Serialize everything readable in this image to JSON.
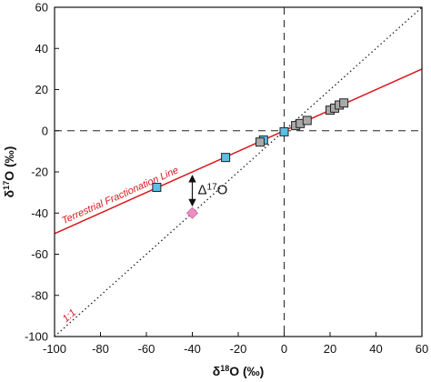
{
  "chart_data": {
    "type": "scatter",
    "xlim": [
      -100,
      60
    ],
    "ylim": [
      -100,
      60
    ],
    "xticks": [
      "-100",
      "-80",
      "-60",
      "-40",
      "-20",
      "0",
      "20",
      "40",
      "60"
    ],
    "yticks": [
      "60",
      "40",
      "20",
      "0",
      "-20",
      "-40",
      "-60",
      "-80",
      "-100"
    ],
    "xlabel_prefix": "δ",
    "xlabel_sup": "18",
    "xlabel_suffix": "O (‰)",
    "ylabel_prefix": "δ",
    "ylabel_sup": "17",
    "ylabel_suffix": "O (‰)",
    "grid": false,
    "reference_lines": {
      "terrestrial_fractionation_line": {
        "label": "Terrestrial Fractionation Line",
        "slope": 0.5,
        "intercept": 0,
        "color": "#d9161c"
      },
      "one_to_one": {
        "label": "1:1",
        "slope": 1,
        "intercept": 0,
        "color": "#222222"
      },
      "zero_lines": {
        "x": 0,
        "y": 0
      }
    },
    "series": [
      {
        "marker": "square",
        "color": "#5bbfe6",
        "points": [
          [
            -55.5,
            -27.5
          ],
          [
            -25.5,
            -13
          ],
          [
            -9,
            -4.5
          ],
          [
            0,
            -0.5
          ]
        ]
      },
      {
        "marker": "square",
        "color": "#a9a9a9",
        "points": [
          [
            -10.5,
            -5.5
          ],
          [
            5,
            2.5
          ],
          [
            7,
            3.5
          ],
          [
            10,
            5
          ],
          [
            20,
            10
          ],
          [
            22,
            11
          ],
          [
            24,
            12.5
          ],
          [
            26,
            13.5
          ]
        ]
      },
      {
        "marker": "diamond",
        "color": "#ec8fc0",
        "points": [
          [
            -40,
            -40
          ]
        ]
      }
    ],
    "annotations": {
      "delta_label_prefix": "Δ",
      "delta_label_sup": "17",
      "delta_label_suffix": "O",
      "delta_arrow": {
        "x": -40,
        "from_y": -20,
        "to_y": -40
      }
    }
  }
}
